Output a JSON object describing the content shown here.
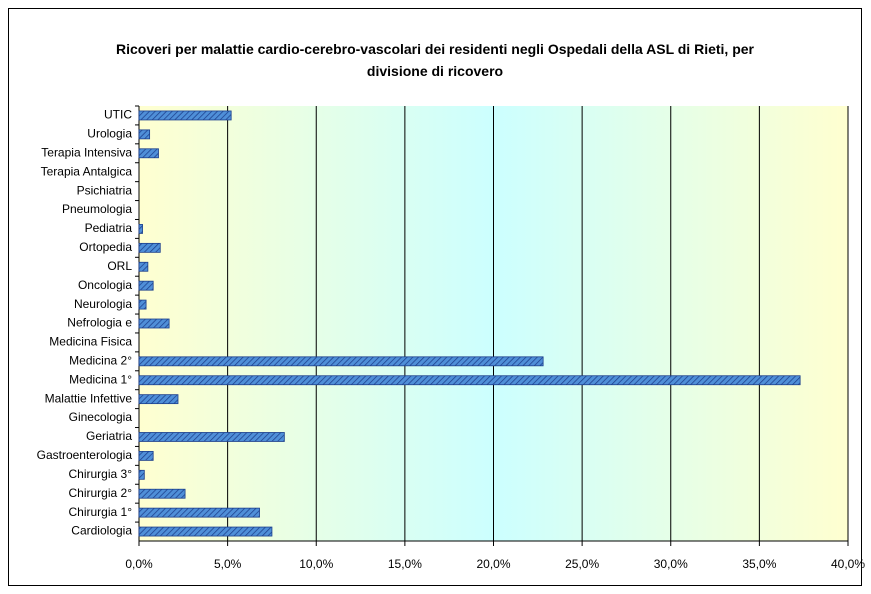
{
  "chart_data": {
    "type": "hbar",
    "title": "Ricoveri per malattie cardio-cerebro-vascolari dei residenti negli Ospedali della ASL di Rieti, per divisione di ricovero",
    "categories": [
      "UTIC",
      "Urologia",
      "Terapia Intensiva",
      "Terapia Antalgica",
      "Psichiatria",
      "Pneumologia",
      "Pediatria",
      "Ortopedia",
      "ORL",
      "Oncologia",
      "Neurologia",
      "Nefrologia e",
      "Medicina Fisica",
      "Medicina 2°",
      "Medicina 1°",
      "Malattie Infettive",
      "Ginecologia",
      "Geriatria",
      "Gastroenterologia",
      "Chirurgia 3°",
      "Chirurgia 2°",
      "Chirurgia 1°",
      "Cardiologia"
    ],
    "values": [
      5.2,
      0.6,
      1.1,
      0,
      0,
      0,
      0.2,
      1.2,
      0.5,
      0.8,
      0.4,
      1.7,
      0,
      22.8,
      37.3,
      2.2,
      0,
      8.2,
      0.8,
      0.3,
      2.6,
      6.8,
      7.5
    ],
    "color": "#4f8fd8",
    "xlim": [
      0,
      40
    ],
    "xticks": [
      {
        "value": 0,
        "label": "0,0%"
      },
      {
        "value": 5,
        "label": "5,0%"
      },
      {
        "value": 10,
        "label": "10,0%"
      },
      {
        "value": 15,
        "label": "15,0%"
      },
      {
        "value": 20,
        "label": "20,0%"
      },
      {
        "value": 25,
        "label": "25,0%"
      },
      {
        "value": 30,
        "label": "30,0%"
      },
      {
        "value": 35,
        "label": "35,0%"
      },
      {
        "value": 40,
        "label": "40,0%"
      }
    ],
    "grid": true
  }
}
